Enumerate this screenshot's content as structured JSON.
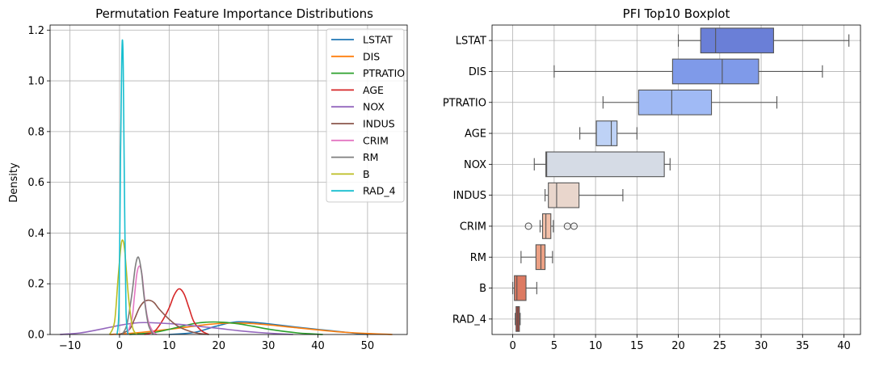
{
  "chart_data": [
    {
      "type": "line",
      "title": "Permutation Feature Importance Distributions",
      "xlabel": "",
      "ylabel": "Density",
      "xlim": [
        -14,
        58
      ],
      "ylim": [
        0,
        1.22
      ],
      "x_ticks": [
        -10,
        0,
        10,
        20,
        30,
        40,
        50
      ],
      "y_ticks": [
        0.0,
        0.2,
        0.4,
        0.6,
        0.8,
        1.0,
        1.2
      ],
      "grid": true,
      "legend_position": "top-right",
      "series": [
        {
          "name": "LSTAT",
          "color": "#1f77b4",
          "x": [
            10,
            15,
            19,
            22,
            24,
            27,
            30,
            34,
            38,
            42,
            46,
            50
          ],
          "values": [
            0.0,
            0.008,
            0.03,
            0.045,
            0.05,
            0.048,
            0.042,
            0.033,
            0.024,
            0.016,
            0.008,
            0.0
          ]
        },
        {
          "name": "DIS",
          "color": "#ff7f0e",
          "x": [
            -2,
            3,
            8,
            14,
            18,
            22,
            26,
            30,
            35,
            40,
            46,
            55
          ],
          "values": [
            0.0,
            0.006,
            0.016,
            0.03,
            0.04,
            0.045,
            0.044,
            0.038,
            0.028,
            0.018,
            0.008,
            0.0
          ]
        },
        {
          "name": "PTRATIO",
          "color": "#2ca02c",
          "x": [
            2,
            7,
            11,
            15,
            18,
            21,
            24,
            27,
            31,
            36,
            41
          ],
          "values": [
            0.0,
            0.008,
            0.025,
            0.043,
            0.049,
            0.048,
            0.042,
            0.032,
            0.018,
            0.006,
            0.0
          ]
        },
        {
          "name": "AGE",
          "color": "#d62728",
          "x": [
            5,
            7,
            8.5,
            10,
            11,
            12,
            13,
            14,
            15,
            16.5,
            18
          ],
          "values": [
            0.0,
            0.012,
            0.05,
            0.105,
            0.155,
            0.18,
            0.16,
            0.105,
            0.05,
            0.015,
            0.0
          ]
        },
        {
          "name": "NOX",
          "color": "#9467bd",
          "x": [
            -12,
            -8,
            -4,
            0,
            3,
            5,
            8,
            12,
            16,
            20,
            24,
            28,
            32,
            35
          ],
          "values": [
            0.0,
            0.006,
            0.02,
            0.036,
            0.045,
            0.047,
            0.045,
            0.04,
            0.032,
            0.024,
            0.015,
            0.008,
            0.003,
            0.0
          ]
        },
        {
          "name": "INDUS",
          "color": "#8c564b",
          "x": [
            0,
            2,
            3,
            4,
            5,
            6,
            7,
            8,
            10,
            12,
            15,
            18
          ],
          "values": [
            0.0,
            0.02,
            0.06,
            0.105,
            0.13,
            0.135,
            0.125,
            0.1,
            0.06,
            0.03,
            0.008,
            0.0
          ]
        },
        {
          "name": "CRIM",
          "color": "#e377c2",
          "x": [
            1.5,
            2.5,
            3.0,
            3.5,
            4.0,
            4.5,
            5.0,
            5.5,
            6.0,
            6.8,
            7.5
          ],
          "values": [
            0.0,
            0.06,
            0.15,
            0.24,
            0.27,
            0.24,
            0.15,
            0.08,
            0.04,
            0.01,
            0.0
          ]
        },
        {
          "name": "RM",
          "color": "#7f7f7f",
          "x": [
            0.5,
            1.5,
            2.5,
            3.2,
            3.8,
            4.4,
            5.0,
            5.8,
            6.8
          ],
          "values": [
            0.0,
            0.04,
            0.16,
            0.27,
            0.305,
            0.25,
            0.14,
            0.04,
            0.0
          ]
        },
        {
          "name": "B",
          "color": "#bcbd22",
          "x": [
            -2.0,
            -1.0,
            -0.3,
            0.3,
            0.7,
            1.1,
            1.8,
            2.6,
            3.5
          ],
          "values": [
            0.0,
            0.05,
            0.22,
            0.35,
            0.37,
            0.32,
            0.15,
            0.03,
            0.0
          ]
        },
        {
          "name": "RAD_4",
          "color": "#17becf",
          "x": [
            -0.5,
            -0.1,
            0.2,
            0.45,
            0.6,
            0.75,
            1.0,
            1.3,
            1.7
          ],
          "values": [
            0.0,
            0.12,
            0.7,
            1.08,
            1.16,
            1.05,
            0.55,
            0.1,
            0.0
          ]
        }
      ]
    },
    {
      "type": "boxplot",
      "title": "PFI Top10 Boxplot",
      "xlabel": "",
      "ylabel": "",
      "xlim": [
        -2.5,
        42
      ],
      "x_ticks": [
        0,
        5,
        10,
        15,
        20,
        25,
        30,
        35,
        40
      ],
      "grid": true,
      "categories": [
        "LSTAT",
        "DIS",
        "PTRATIO",
        "AGE",
        "NOX",
        "INDUS",
        "CRIM",
        "RM",
        "B",
        "RAD_4"
      ],
      "boxes": [
        {
          "label": "LSTAT",
          "color": "#6a7fd7",
          "whisker_low": 20.0,
          "q1": 22.7,
          "median": 24.5,
          "q3": 31.5,
          "whisker_high": 40.6,
          "outliers": []
        },
        {
          "label": "DIS",
          "color": "#7f9ae9",
          "whisker_low": 5.0,
          "q1": 19.3,
          "median": 25.3,
          "q3": 29.7,
          "whisker_high": 37.4,
          "outliers": []
        },
        {
          "label": "PTRATIO",
          "color": "#a0baf5",
          "whisker_low": 10.9,
          "q1": 15.2,
          "median": 19.2,
          "q3": 24.0,
          "whisker_high": 31.9,
          "outliers": []
        },
        {
          "label": "AGE",
          "color": "#bed2f6",
          "whisker_low": 8.1,
          "q1": 10.1,
          "median": 11.9,
          "q3": 12.6,
          "whisker_high": 15.0,
          "outliers": []
        },
        {
          "label": "NOX",
          "color": "#d5dbe5",
          "whisker_low": 2.6,
          "q1": 4.0,
          "median": 4.1,
          "q3": 18.3,
          "whisker_high": 19.0,
          "outliers": []
        },
        {
          "label": "INDUS",
          "color": "#e9d6cc",
          "whisker_low": 3.9,
          "q1": 4.3,
          "median": 5.3,
          "q3": 8.0,
          "whisker_high": 13.3,
          "outliers": []
        },
        {
          "label": "CRIM",
          "color": "#f3c0a9",
          "whisker_low": 3.3,
          "q1": 3.6,
          "median": 4.0,
          "q3": 4.6,
          "whisker_high": 4.9,
          "outliers": [
            1.9,
            6.6,
            7.4
          ]
        },
        {
          "label": "RM",
          "color": "#eca185",
          "whisker_low": 1.0,
          "q1": 2.8,
          "median": 3.4,
          "q3": 3.9,
          "whisker_high": 4.8,
          "outliers": []
        },
        {
          "label": "B",
          "color": "#dd7a62",
          "whisker_low": 0.0,
          "q1": 0.2,
          "median": 0.5,
          "q3": 1.6,
          "whisker_high": 2.9,
          "outliers": []
        },
        {
          "label": "RAD_4",
          "color": "#b8493e",
          "whisker_low": 0.3,
          "q1": 0.4,
          "median": 0.6,
          "q3": 0.8,
          "whisker_high": 0.9,
          "outliers": []
        }
      ]
    }
  ]
}
